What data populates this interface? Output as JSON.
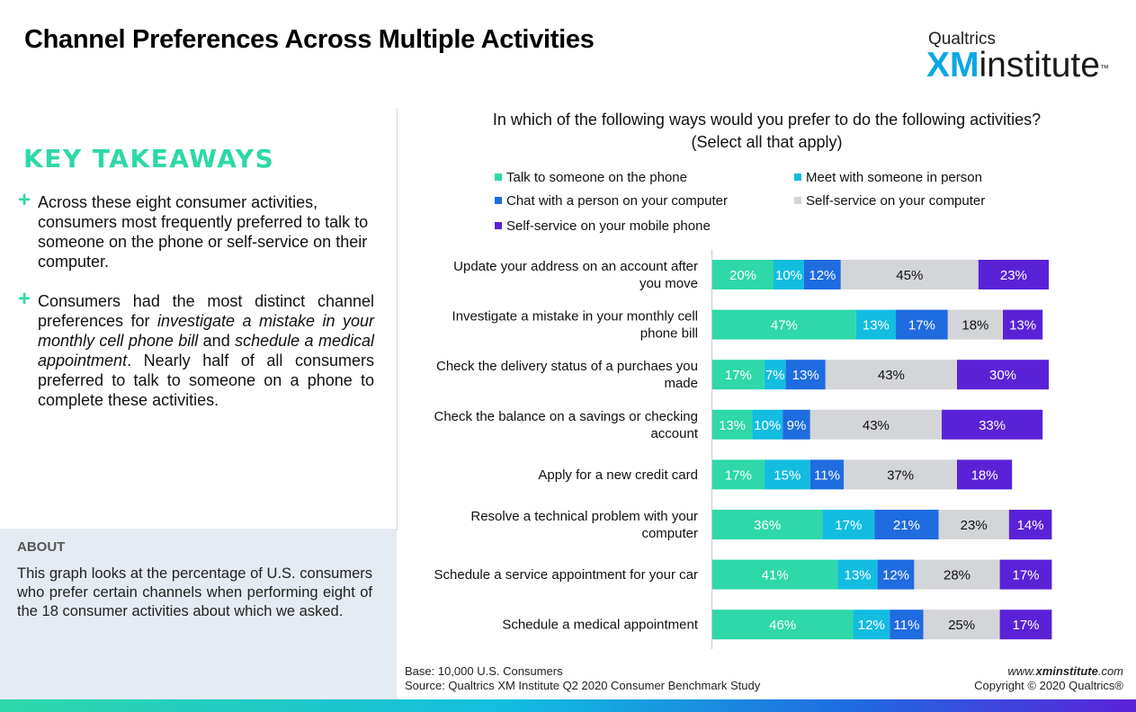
{
  "header": {
    "title": "Channel Preferences Across Multiple Activities",
    "logo_top": "Qualtrics",
    "logo_xm": "XM",
    "logo_rest": "institute",
    "logo_tm": "™"
  },
  "takeaways": {
    "heading": "KEY TAKEAWAYS",
    "plus": "+",
    "b1": "Across these eight consumer activities, consumers most frequently preferred to talk to someone on the phone or self-service on their computer.",
    "b2_part1": "Consumers had the most distinct channel preferences for ",
    "b2_em1": "investigate a mistake in your monthly cell phone bill",
    "b2_part2": " and ",
    "b2_em2": "schedule a medical appointment",
    "b2_part3": ". Nearly half of all consumers preferred to talk to someone on a phone to complete these activities."
  },
  "about": {
    "heading": "ABOUT",
    "text": "This graph looks at the percentage of U.S. consumers who prefer certain channels when performing eight of the 18 consumer activities about which we asked."
  },
  "footer": {
    "base": "Base: 10,000 U.S. Consumers",
    "source": "Source: Qualtrics XM Institute Q2 2020 Consumer Benchmark Study",
    "site_prefix": "www.",
    "site_bold": "xminstitute",
    "site_suffix": ".com",
    "copyright": "Copyright © 2020 Qualtrics®"
  },
  "chart_data": {
    "type": "bar",
    "orientation": "horizontal",
    "stacked": true,
    "title_line1": "In which of the following ways would you prefer to do the following activities?",
    "title_line2": "(Select all that apply)",
    "categories": [
      "Update your address on an account after you move",
      "Investigate a mistake in your monthly cell phone bill",
      "Check the delivery status of a purchaes you made",
      "Check the balance on a savings or checking account",
      "Apply for a new credit card",
      "Resolve a technical problem with your computer",
      "Schedule a service appointment for your car",
      "Schedule a medical appointment"
    ],
    "category_lines": [
      [
        "Update your address on an account after",
        "you move"
      ],
      [
        "Investigate a mistake in your monthly cell",
        "phone bill"
      ],
      [
        "Check the delivery status of a purchaes you",
        "made"
      ],
      [
        "Check the balance on a savings or checking",
        "account"
      ],
      [
        "Apply for a new credit card"
      ],
      [
        "Resolve a technical problem with your",
        "computer"
      ],
      [
        "Schedule a service appointment for your car"
      ],
      [
        "Schedule a medical appointment"
      ]
    ],
    "series": [
      {
        "name": "Talk to someone on the phone",
        "color": "#2ed8a8",
        "text_color": "#ffffff",
        "values": [
          20,
          47,
          17,
          13,
          17,
          36,
          41,
          46
        ]
      },
      {
        "name": "Meet with someone in person",
        "color": "#12bde0",
        "text_color": "#ffffff",
        "values": [
          10,
          13,
          7,
          10,
          15,
          17,
          13,
          12
        ]
      },
      {
        "name": "Chat with a person on your computer",
        "color": "#1f6be0",
        "text_color": "#ffffff",
        "values": [
          12,
          17,
          13,
          9,
          11,
          21,
          12,
          11
        ]
      },
      {
        "name": "Self-service on your computer",
        "color": "#d3d5d8",
        "text_color": "#111111",
        "values": [
          45,
          18,
          43,
          43,
          37,
          23,
          28,
          25
        ]
      },
      {
        "name": "Self-service on your mobile phone",
        "color": "#5a22d6",
        "text_color": "#ffffff",
        "values": [
          23,
          13,
          30,
          33,
          18,
          14,
          17,
          17
        ]
      }
    ],
    "value_suffix": "%",
    "legend": "top",
    "grid": false
  }
}
